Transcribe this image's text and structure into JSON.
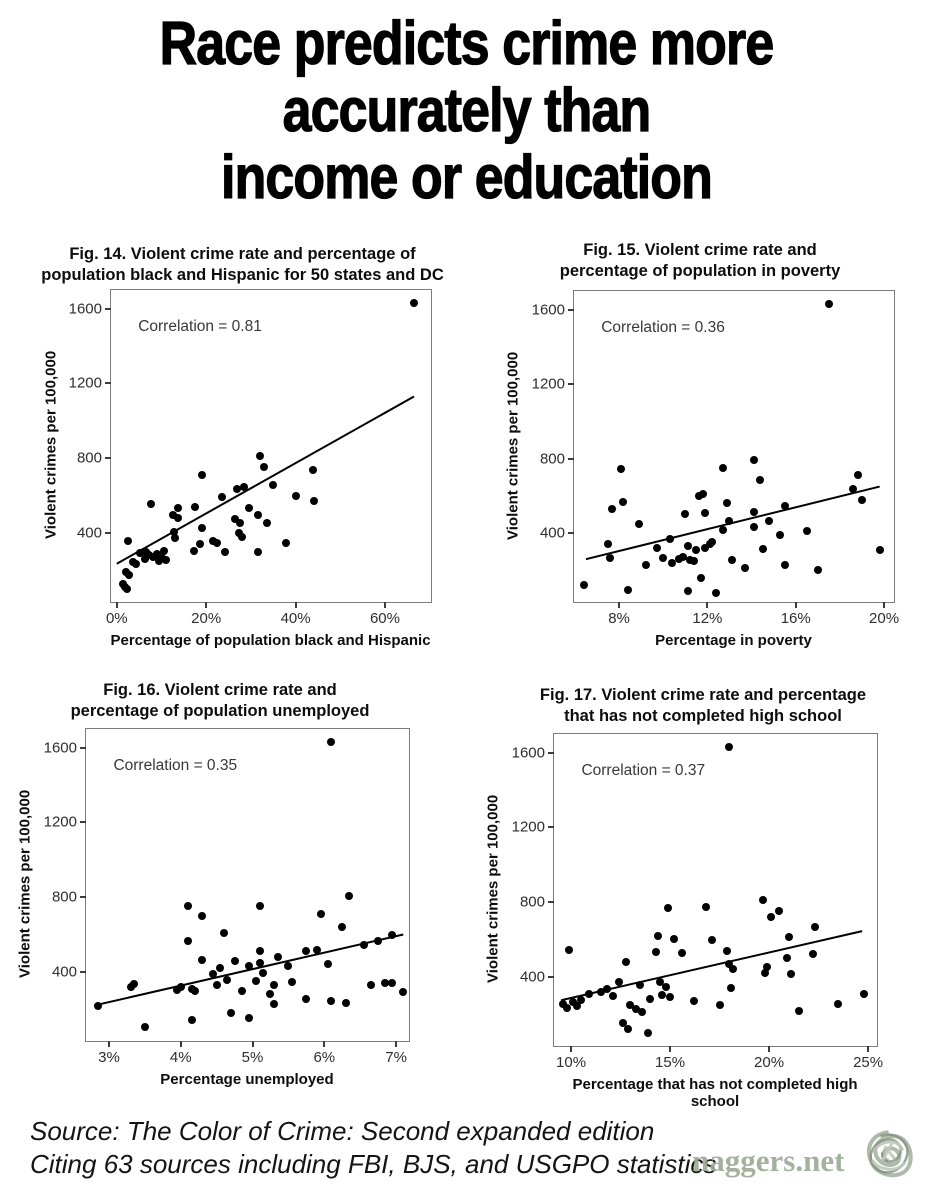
{
  "page": {
    "title_lines": [
      "Race predicts crime more",
      "accurately than",
      "income or education"
    ],
    "source_lines": [
      "Source: The Color of Crime: Second expanded edition",
      "Citing 63 sources including FBI, BJS, and USGPO statistics"
    ],
    "watermark_text": "naggers.net",
    "colors": {
      "text": "#000000",
      "watermark_green": "#9cab95",
      "plot_border": "#7d7d7d",
      "marker": "#000000"
    }
  },
  "chart_data": [
    {
      "type": "scatter",
      "fig_label": "Fig. 14",
      "title_lines": [
        "Fig. 14. Violent crime rate and percentage of",
        "population black and Hispanic for 50 states and DC"
      ],
      "annotation": "Correlation = 0.81",
      "correlation": 0.81,
      "xlabel": "Percentage of population black and Hispanic",
      "ylabel": "Violent crimes per 100,000",
      "grid": false,
      "xlim": [
        -1.3,
        70.3
      ],
      "ylim": [
        30,
        1700
      ],
      "x_ticks": [
        {
          "v": 0,
          "label": "0%"
        },
        {
          "v": 20,
          "label": "20%"
        },
        {
          "v": 40,
          "label": "40%"
        },
        {
          "v": 60,
          "label": "60%"
        }
      ],
      "y_ticks": [
        {
          "v": 400,
          "label": "400"
        },
        {
          "v": 800,
          "label": "800"
        },
        {
          "v": 1200,
          "label": "1200"
        },
        {
          "v": 1600,
          "label": "1600"
        }
      ],
      "trend": {
        "x1": 0,
        "y1": 235,
        "x2": 66.5,
        "y2": 1130
      },
      "points": [
        [
          66.5,
          1630
        ],
        [
          32,
          810
        ],
        [
          33,
          750
        ],
        [
          44,
          735
        ],
        [
          19,
          710
        ],
        [
          35,
          655
        ],
        [
          28.5,
          645
        ],
        [
          27,
          635
        ],
        [
          40,
          595
        ],
        [
          23.5,
          590
        ],
        [
          44.2,
          570
        ],
        [
          7.6,
          555
        ],
        [
          17.5,
          540
        ],
        [
          13.8,
          535
        ],
        [
          29.5,
          535
        ],
        [
          31.5,
          495
        ],
        [
          12.5,
          495
        ],
        [
          13.6,
          480
        ],
        [
          26.5,
          475
        ],
        [
          27.5,
          455
        ],
        [
          33.5,
          455
        ],
        [
          19,
          425
        ],
        [
          12.8,
          405
        ],
        [
          27.3,
          400
        ],
        [
          27.9,
          380
        ],
        [
          13,
          370
        ],
        [
          21.5,
          355
        ],
        [
          2.5,
          355
        ],
        [
          22.4,
          345
        ],
        [
          37.8,
          345
        ],
        [
          18.6,
          340
        ],
        [
          17.2,
          305
        ],
        [
          10.5,
          305
        ],
        [
          31.5,
          295
        ],
        [
          24.2,
          295
        ],
        [
          6.5,
          300
        ],
        [
          5.2,
          290
        ],
        [
          9,
          285
        ],
        [
          7.2,
          280
        ],
        [
          8.2,
          270
        ],
        [
          10,
          265
        ],
        [
          6.2,
          260
        ],
        [
          11,
          255
        ],
        [
          9.4,
          250
        ],
        [
          3.6,
          245
        ],
        [
          4.3,
          232
        ],
        [
          2.1,
          190
        ],
        [
          2.8,
          175
        ],
        [
          1.3,
          128
        ],
        [
          1.8,
          108
        ],
        [
          2.2,
          97
        ]
      ]
    },
    {
      "type": "scatter",
      "fig_label": "Fig. 15",
      "title_lines": [
        "Fig. 15. Violent crime rate and",
        "percentage of population in poverty"
      ],
      "annotation": "Correlation = 0.36",
      "correlation": 0.36,
      "xlabel": "Percentage in poverty",
      "ylabel": "Violent crimes per 100,000",
      "grid": false,
      "xlim": [
        5.96,
        20.45
      ],
      "ylim": [
        30,
        1700
      ],
      "x_ticks": [
        {
          "v": 8,
          "label": "8%"
        },
        {
          "v": 12,
          "label": "12%"
        },
        {
          "v": 16,
          "label": "16%"
        },
        {
          "v": 20,
          "label": "20%"
        }
      ],
      "y_ticks": [
        {
          "v": 400,
          "label": "400"
        },
        {
          "v": 800,
          "label": "800"
        },
        {
          "v": 1200,
          "label": "1200"
        },
        {
          "v": 1600,
          "label": "1600"
        }
      ],
      "trend": {
        "x1": 6.5,
        "y1": 260,
        "x2": 19.8,
        "y2": 650
      },
      "points": [
        [
          17.5,
          1630
        ],
        [
          14.1,
          795
        ],
        [
          12.7,
          750
        ],
        [
          8.1,
          745
        ],
        [
          18.8,
          710
        ],
        [
          14.4,
          685
        ],
        [
          18.6,
          635
        ],
        [
          11.8,
          610
        ],
        [
          11.6,
          600
        ],
        [
          19,
          580
        ],
        [
          8.2,
          565
        ],
        [
          12.9,
          560
        ],
        [
          15.5,
          545
        ],
        [
          7.7,
          530
        ],
        [
          14.1,
          515
        ],
        [
          11.9,
          510
        ],
        [
          11,
          505
        ],
        [
          13,
          465
        ],
        [
          14.8,
          465
        ],
        [
          8.9,
          450
        ],
        [
          14.1,
          435
        ],
        [
          12.7,
          415
        ],
        [
          16.5,
          410
        ],
        [
          15.3,
          390
        ],
        [
          10.3,
          370
        ],
        [
          12.2,
          350
        ],
        [
          7.5,
          340
        ],
        [
          12.1,
          340
        ],
        [
          11.1,
          330
        ],
        [
          9.7,
          320
        ],
        [
          11.9,
          320
        ],
        [
          11.5,
          310
        ],
        [
          19.8,
          310
        ],
        [
          14.5,
          315
        ],
        [
          10.9,
          270
        ],
        [
          7.6,
          265
        ],
        [
          10,
          265
        ],
        [
          10.7,
          260
        ],
        [
          13.1,
          255
        ],
        [
          11.2,
          255
        ],
        [
          11.4,
          250
        ],
        [
          10.4,
          240
        ],
        [
          9.2,
          230
        ],
        [
          15.5,
          230
        ],
        [
          13.7,
          210
        ],
        [
          17,
          200
        ],
        [
          11.7,
          160
        ],
        [
          6.4,
          120
        ],
        [
          8.4,
          95
        ],
        [
          11.1,
          90
        ],
        [
          12.4,
          80
        ]
      ]
    },
    {
      "type": "scatter",
      "fig_label": "Fig. 16",
      "title_lines": [
        "Fig. 16. Violent crime rate and",
        "percentage of population unemployed"
      ],
      "annotation": "Correlation = 0.35",
      "correlation": 0.35,
      "xlabel": "Percentage unemployed",
      "ylabel": "Violent crimes per 100,000",
      "grid": false,
      "xlim": [
        2.68,
        7.18
      ],
      "ylim": [
        30,
        1700
      ],
      "x_ticks": [
        {
          "v": 3,
          "label": "3%"
        },
        {
          "v": 4,
          "label": "4%"
        },
        {
          "v": 5,
          "label": "5%"
        },
        {
          "v": 6,
          "label": "6%"
        },
        {
          "v": 7,
          "label": "7%"
        }
      ],
      "y_ticks": [
        {
          "v": 400,
          "label": "400"
        },
        {
          "v": 800,
          "label": "800"
        },
        {
          "v": 1200,
          "label": "1200"
        },
        {
          "v": 1600,
          "label": "1600"
        }
      ],
      "trend": {
        "x1": 2.85,
        "y1": 225,
        "x2": 7.1,
        "y2": 600
      },
      "points": [
        [
          6.1,
          1630
        ],
        [
          6.35,
          805
        ],
        [
          4.1,
          750
        ],
        [
          5.1,
          750
        ],
        [
          5.95,
          710
        ],
        [
          4.3,
          700
        ],
        [
          6.25,
          640
        ],
        [
          4.6,
          610
        ],
        [
          6.95,
          595
        ],
        [
          4.1,
          565
        ],
        [
          6.75,
          565
        ],
        [
          6.55,
          545
        ],
        [
          5.9,
          515
        ],
        [
          5.1,
          510
        ],
        [
          5.75,
          510
        ],
        [
          5.35,
          480
        ],
        [
          4.3,
          465
        ],
        [
          4.75,
          460
        ],
        [
          5.1,
          450
        ],
        [
          6.05,
          440
        ],
        [
          4.95,
          430
        ],
        [
          5.5,
          430
        ],
        [
          4.55,
          420
        ],
        [
          5.15,
          395
        ],
        [
          4.45,
          390
        ],
        [
          4.65,
          355
        ],
        [
          5.05,
          350
        ],
        [
          5.55,
          345
        ],
        [
          6.85,
          340
        ],
        [
          6.95,
          340
        ],
        [
          3.35,
          335
        ],
        [
          5.3,
          330
        ],
        [
          4.5,
          330
        ],
        [
          6.65,
          330
        ],
        [
          3.3,
          320
        ],
        [
          4,
          320
        ],
        [
          4.15,
          310
        ],
        [
          3.95,
          305
        ],
        [
          4.85,
          300
        ],
        [
          4.2,
          295
        ],
        [
          7.1,
          290
        ],
        [
          5.25,
          280
        ],
        [
          5.75,
          255
        ],
        [
          6.1,
          245
        ],
        [
          6.3,
          235
        ],
        [
          5.3,
          230
        ],
        [
          2.85,
          215
        ],
        [
          4.7,
          180
        ],
        [
          4.95,
          155
        ],
        [
          4.15,
          140
        ],
        [
          3.5,
          105
        ]
      ]
    },
    {
      "type": "scatter",
      "fig_label": "Fig. 17",
      "title_lines": [
        "Fig. 17. Violent crime rate and percentage",
        "that has not completed high school"
      ],
      "annotation": "Correlation = 0.37",
      "correlation": 0.37,
      "xlabel": "Percentage that has not completed high school",
      "ylabel": "Violent crimes per 100,000",
      "grid": false,
      "xlim": [
        9.14,
        25.45
      ],
      "ylim": [
        30,
        1700
      ],
      "x_ticks": [
        {
          "v": 10,
          "label": "10%"
        },
        {
          "v": 15,
          "label": "15%"
        },
        {
          "v": 20,
          "label": "20%"
        },
        {
          "v": 25,
          "label": "25%"
        }
      ],
      "y_ticks": [
        {
          "v": 400,
          "label": "400"
        },
        {
          "v": 800,
          "label": "800"
        },
        {
          "v": 1200,
          "label": "1200"
        },
        {
          "v": 1600,
          "label": "1600"
        }
      ],
      "trend": {
        "x1": 9.5,
        "y1": 275,
        "x2": 24.7,
        "y2": 645
      },
      "points": [
        [
          18,
          1630
        ],
        [
          19.7,
          810
        ],
        [
          16.8,
          775
        ],
        [
          14.9,
          770
        ],
        [
          20.5,
          755
        ],
        [
          20.1,
          720
        ],
        [
          22.3,
          665
        ],
        [
          14.4,
          620
        ],
        [
          21,
          615
        ],
        [
          15.2,
          605
        ],
        [
          17.1,
          600
        ],
        [
          9.9,
          545
        ],
        [
          17.9,
          540
        ],
        [
          14.3,
          535
        ],
        [
          15.6,
          530
        ],
        [
          22.2,
          520
        ],
        [
          20.9,
          500
        ],
        [
          12.8,
          480
        ],
        [
          18,
          470
        ],
        [
          19.9,
          455
        ],
        [
          18.2,
          440
        ],
        [
          19.8,
          420
        ],
        [
          21.1,
          415
        ],
        [
          14.5,
          375
        ],
        [
          12.4,
          370
        ],
        [
          13.5,
          355
        ],
        [
          14.8,
          345
        ],
        [
          18.1,
          340
        ],
        [
          11.8,
          335
        ],
        [
          11.5,
          320
        ],
        [
          10.9,
          310
        ],
        [
          24.8,
          310
        ],
        [
          14.6,
          305
        ],
        [
          12.1,
          300
        ],
        [
          15,
          290
        ],
        [
          14,
          280
        ],
        [
          10.5,
          275
        ],
        [
          16.2,
          270
        ],
        [
          10.1,
          265
        ],
        [
          9.6,
          255
        ],
        [
          23.5,
          255
        ],
        [
          17.5,
          250
        ],
        [
          13,
          250
        ],
        [
          10.3,
          245
        ],
        [
          9.8,
          235
        ],
        [
          13.3,
          230
        ],
        [
          21.5,
          215
        ],
        [
          13.6,
          210
        ],
        [
          12.6,
          155
        ],
        [
          12.9,
          120
        ],
        [
          13.9,
          100
        ]
      ]
    }
  ]
}
